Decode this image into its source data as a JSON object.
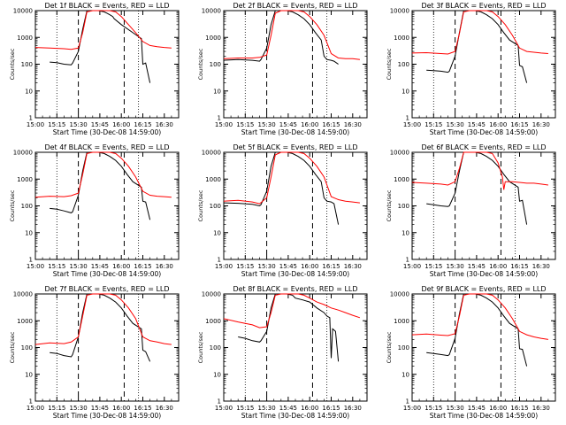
{
  "chart_data": [
    {
      "type": "line",
      "title": "Det 1f BLACK = Events, RED = LLD",
      "xlabel": "Start Time (30-Dec-08 14:59:00)",
      "ylabel": "Counts/sec",
      "xticks": [
        "15:00",
        "15:15",
        "15:30",
        "15:45",
        "16:00",
        "16:15",
        "16:30"
      ],
      "yticks": [
        "1",
        "10",
        "100",
        "1000",
        "10000"
      ],
      "ylim": [
        1,
        10000
      ],
      "log_y": true,
      "series": [
        {
          "name": "Events",
          "color": "#000000",
          "x": [
            10,
            15,
            20,
            25,
            26,
            30,
            33,
            36,
            38,
            42,
            44,
            48,
            50,
            52,
            54,
            55,
            60,
            68,
            74,
            75,
            77,
            80
          ],
          "y": [
            120,
            115,
            100,
            95,
            110,
            300,
            2000,
            11000,
            12000,
            11000,
            10000,
            9000,
            8000,
            7000,
            6000,
            5000,
            3000,
            1500,
            900,
            100,
            110,
            20
          ]
        },
        {
          "name": "LLD",
          "color": "#ff0000",
          "x": [
            0,
            10,
            20,
            25,
            30,
            33,
            36,
            40,
            44,
            48,
            52,
            56,
            60,
            65,
            70,
            75,
            80,
            85,
            90,
            95
          ],
          "y": [
            420,
            400,
            380,
            360,
            400,
            1500,
            9000,
            12000,
            11000,
            12000,
            11500,
            9000,
            6000,
            3000,
            1500,
            700,
            500,
            450,
            420,
            400
          ]
        }
      ]
    },
    {
      "type": "line",
      "title": "Det 2f BLACK = Events, RED = LLD",
      "xlabel": "Start Time (30-Dec-08 14:59:00)",
      "ylabel": "Counts/sec",
      "xticks": [
        "15:00",
        "15:15",
        "15:30",
        "15:45",
        "16:00",
        "16:15",
        "16:30"
      ],
      "yticks": [
        "1",
        "10",
        "100",
        "1000",
        "10000"
      ],
      "ylim": [
        1,
        10000
      ],
      "log_y": true,
      "series": [
        {
          "name": "Events",
          "color": "#000000",
          "x": [
            0,
            10,
            20,
            25,
            26,
            30,
            33,
            36,
            40,
            44,
            48,
            52,
            56,
            60,
            64,
            68,
            70,
            72,
            75,
            77,
            80
          ],
          "y": [
            140,
            150,
            140,
            130,
            150,
            400,
            3000,
            11000,
            12000,
            10000,
            9000,
            7000,
            5000,
            3000,
            1500,
            800,
            200,
            150,
            140,
            130,
            100
          ]
        },
        {
          "name": "LLD",
          "color": "#ff0000",
          "x": [
            0,
            10,
            20,
            25,
            30,
            33,
            36,
            40,
            44,
            48,
            52,
            56,
            60,
            65,
            70,
            75,
            80,
            85,
            90,
            95
          ],
          "y": [
            160,
            170,
            170,
            180,
            220,
            1200,
            8000,
            12000,
            11000,
            12000,
            11500,
            9000,
            6000,
            3000,
            1200,
            250,
            170,
            160,
            160,
            150
          ]
        }
      ]
    },
    {
      "type": "line",
      "title": "Det 3f BLACK = Events, RED = LLD",
      "xlabel": "Start Time (30-Dec-08 14:59:00)",
      "ylabel": "Counts/sec",
      "xticks": [
        "15:00",
        "15:15",
        "15:30",
        "15:45",
        "16:00",
        "16:15",
        "16:30"
      ],
      "yticks": [
        "1",
        "10",
        "100",
        "1000",
        "10000"
      ],
      "ylim": [
        1,
        10000
      ],
      "log_y": true,
      "series": [
        {
          "name": "Events",
          "color": "#000000",
          "x": [
            10,
            15,
            20,
            25,
            26,
            30,
            33,
            36,
            40,
            44,
            48,
            52,
            56,
            60,
            64,
            68,
            74,
            75,
            77,
            80
          ],
          "y": [
            60,
            58,
            55,
            50,
            55,
            200,
            1500,
            10000,
            12000,
            11000,
            9000,
            7000,
            5000,
            3000,
            1500,
            800,
            500,
            90,
            80,
            20
          ]
        },
        {
          "name": "LLD",
          "color": "#ff0000",
          "x": [
            0,
            10,
            20,
            25,
            30,
            33,
            36,
            40,
            44,
            48,
            52,
            56,
            60,
            65,
            70,
            75,
            80,
            85,
            90,
            95
          ],
          "y": [
            260,
            270,
            250,
            240,
            300,
            1400,
            9000,
            12000,
            11000,
            12000,
            11500,
            9000,
            6000,
            3000,
            1200,
            400,
            300,
            280,
            260,
            250
          ]
        }
      ]
    },
    {
      "type": "line",
      "title": "Det 4f BLACK = Events, RED = LLD",
      "xlabel": "Start Time (30-Dec-08 14:59:00)",
      "ylabel": "Counts/sec",
      "xticks": [
        "15:00",
        "15:15",
        "15:30",
        "15:45",
        "16:00",
        "16:15",
        "16:30"
      ],
      "yticks": [
        "1",
        "10",
        "100",
        "1000",
        "10000"
      ],
      "ylim": [
        1,
        10000
      ],
      "log_y": true,
      "series": [
        {
          "name": "Events",
          "color": "#000000",
          "x": [
            10,
            15,
            20,
            25,
            26,
            30,
            33,
            36,
            40,
            44,
            48,
            52,
            56,
            60,
            64,
            68,
            74,
            75,
            77,
            80
          ],
          "y": [
            80,
            75,
            65,
            55,
            60,
            250,
            2000,
            11000,
            12000,
            11000,
            9000,
            7000,
            5000,
            3000,
            1500,
            800,
            500,
            150,
            140,
            30
          ]
        },
        {
          "name": "LLD",
          "color": "#ff0000",
          "x": [
            0,
            10,
            20,
            25,
            30,
            33,
            36,
            40,
            44,
            48,
            52,
            56,
            60,
            65,
            70,
            75,
            80,
            85,
            90,
            95
          ],
          "y": [
            210,
            230,
            220,
            240,
            300,
            1500,
            9000,
            12000,
            11000,
            12000,
            11500,
            9000,
            6000,
            3000,
            1200,
            350,
            250,
            230,
            220,
            210
          ]
        }
      ]
    },
    {
      "type": "line",
      "title": "Det 5f BLACK = Events, RED = LLD",
      "xlabel": "Start Time (30-Dec-08 14:59:00)",
      "ylabel": "Counts/sec",
      "xticks": [
        "15:00",
        "15:15",
        "15:30",
        "15:45",
        "16:00",
        "16:15",
        "16:30"
      ],
      "yticks": [
        "1",
        "10",
        "100",
        "1000",
        "10000"
      ],
      "ylim": [
        1,
        10000
      ],
      "log_y": true,
      "series": [
        {
          "name": "Events",
          "color": "#000000",
          "x": [
            0,
            10,
            20,
            25,
            26,
            30,
            33,
            36,
            40,
            44,
            48,
            52,
            56,
            60,
            64,
            68,
            70,
            72,
            75,
            77,
            80
          ],
          "y": [
            130,
            125,
            115,
            100,
            110,
            350,
            3000,
            11000,
            12000,
            10000,
            9000,
            7000,
            5000,
            3000,
            1500,
            800,
            200,
            150,
            140,
            120,
            20
          ]
        },
        {
          "name": "LLD",
          "color": "#ff0000",
          "x": [
            0,
            10,
            20,
            25,
            30,
            33,
            36,
            40,
            44,
            48,
            52,
            56,
            60,
            65,
            70,
            75,
            80,
            85,
            90,
            95
          ],
          "y": [
            150,
            160,
            140,
            120,
            200,
            1200,
            8000,
            12000,
            11000,
            12000,
            11500,
            9000,
            6000,
            3000,
            1200,
            220,
            170,
            150,
            140,
            130
          ]
        }
      ]
    },
    {
      "type": "line",
      "title": "Det 6f BLACK = Events, RED = LLD",
      "xlabel": "Start Time (30-Dec-08 14:59:00)",
      "ylabel": "Counts/sec",
      "xticks": [
        "15:00",
        "15:15",
        "15:30",
        "15:45",
        "16:00",
        "16:15",
        "16:30"
      ],
      "yticks": [
        "1",
        "10",
        "100",
        "1000",
        "10000"
      ],
      "ylim": [
        1,
        10000
      ],
      "log_y": true,
      "series": [
        {
          "name": "Events",
          "color": "#000000",
          "x": [
            10,
            15,
            20,
            25,
            26,
            30,
            33,
            36,
            40,
            44,
            48,
            52,
            56,
            60,
            64,
            68,
            74,
            75,
            77,
            80
          ],
          "y": [
            120,
            110,
            100,
            95,
            100,
            300,
            2000,
            11000,
            12000,
            11000,
            9000,
            7000,
            5000,
            3000,
            1500,
            800,
            500,
            150,
            160,
            20
          ]
        },
        {
          "name": "LLD",
          "color": "#ff0000",
          "x": [
            0,
            10,
            20,
            25,
            30,
            33,
            36,
            40,
            44,
            48,
            52,
            56,
            60,
            63,
            64,
            65,
            70,
            75,
            80,
            85,
            90,
            95
          ],
          "y": [
            750,
            700,
            650,
            600,
            800,
            2500,
            10000,
            12000,
            11000,
            12000,
            11000,
            9000,
            4000,
            1200,
            400,
            800,
            800,
            750,
            700,
            700,
            650,
            600
          ]
        }
      ]
    },
    {
      "type": "line",
      "title": "Det 7f BLACK = Events, RED = LLD",
      "xlabel": "Start Time (30-Dec-08 14:59:00)",
      "ylabel": "Counts/sec",
      "xticks": [
        "15:00",
        "15:15",
        "15:30",
        "15:45",
        "16:00",
        "16:15",
        "16:30"
      ],
      "yticks": [
        "1",
        "10",
        "100",
        "1000",
        "10000"
      ],
      "ylim": [
        1,
        10000
      ],
      "log_y": true,
      "series": [
        {
          "name": "Events",
          "color": "#000000",
          "x": [
            10,
            15,
            20,
            25,
            26,
            30,
            33,
            36,
            40,
            44,
            48,
            52,
            56,
            60,
            64,
            68,
            74,
            75,
            77,
            80
          ],
          "y": [
            65,
            60,
            50,
            45,
            55,
            250,
            2000,
            11000,
            12000,
            11000,
            9000,
            7000,
            5000,
            3000,
            1500,
            800,
            500,
            80,
            70,
            30
          ]
        },
        {
          "name": "LLD",
          "color": "#ff0000",
          "x": [
            0,
            10,
            20,
            25,
            30,
            33,
            36,
            40,
            44,
            48,
            52,
            56,
            60,
            65,
            70,
            75,
            80,
            85,
            90,
            95
          ],
          "y": [
            130,
            150,
            140,
            160,
            250,
            1500,
            9000,
            12000,
            11000,
            12000,
            11500,
            9000,
            6000,
            3000,
            1200,
            250,
            180,
            160,
            140,
            130
          ]
        }
      ]
    },
    {
      "type": "line",
      "title": "Det 8f BLACK = Events, RED = LLD",
      "xlabel": "Start Time (30-Dec-08 14:59:00)",
      "ylabel": "Counts/sec",
      "xticks": [
        "15:00",
        "15:15",
        "15:30",
        "15:45",
        "16:00",
        "16:15",
        "16:30"
      ],
      "yticks": [
        "1",
        "10",
        "100",
        "1000",
        "10000"
      ],
      "ylim": [
        1,
        10000
      ],
      "log_y": true,
      "series": [
        {
          "name": "Events",
          "color": "#000000",
          "x": [
            10,
            15,
            20,
            25,
            26,
            30,
            33,
            36,
            40,
            44,
            48,
            50,
            55,
            60,
            65,
            70,
            72,
            74,
            75,
            76,
            78,
            80
          ],
          "y": [
            250,
            220,
            180,
            160,
            180,
            400,
            3000,
            11000,
            12000,
            10000,
            9000,
            7000,
            6000,
            5000,
            3000,
            2000,
            1500,
            1300,
            40,
            500,
            400,
            30
          ]
        },
        {
          "name": "LLD",
          "color": "#ff0000",
          "x": [
            0,
            10,
            20,
            25,
            30,
            33,
            36,
            40,
            44,
            48,
            52,
            56,
            60,
            65,
            70,
            75,
            80,
            85,
            90,
            95
          ],
          "y": [
            1200,
            900,
            700,
            550,
            600,
            2000,
            9000,
            12000,
            11000,
            12000,
            11000,
            9000,
            7000,
            5000,
            4000,
            3000,
            2500,
            2000,
            1600,
            1300
          ]
        }
      ]
    },
    {
      "type": "line",
      "title": "Det 9f BLACK = Events, RED = LLD",
      "xlabel": "Start Time (30-Dec-08 14:59:00)",
      "ylabel": "Counts/sec",
      "xticks": [
        "15:00",
        "15:15",
        "15:30",
        "15:45",
        "16:00",
        "16:15",
        "16:30"
      ],
      "yticks": [
        "1",
        "10",
        "100",
        "1000",
        "10000"
      ],
      "ylim": [
        1,
        10000
      ],
      "log_y": true,
      "series": [
        {
          "name": "Events",
          "color": "#000000",
          "x": [
            10,
            15,
            20,
            25,
            26,
            30,
            33,
            36,
            40,
            44,
            48,
            52,
            56,
            60,
            64,
            68,
            74,
            75,
            77,
            80
          ],
          "y": [
            65,
            60,
            55,
            50,
            55,
            220,
            1800,
            10000,
            12000,
            11000,
            9000,
            7000,
            5000,
            3000,
            1500,
            800,
            500,
            90,
            85,
            20
          ]
        },
        {
          "name": "LLD",
          "color": "#ff0000",
          "x": [
            0,
            10,
            20,
            25,
            30,
            33,
            36,
            40,
            44,
            48,
            52,
            56,
            60,
            65,
            70,
            75,
            80,
            85,
            90,
            95
          ],
          "y": [
            300,
            320,
            290,
            280,
            330,
            1500,
            9000,
            12000,
            11000,
            12000,
            11500,
            9000,
            6000,
            3000,
            1200,
            400,
            300,
            250,
            220,
            200
          ]
        }
      ]
    }
  ]
}
